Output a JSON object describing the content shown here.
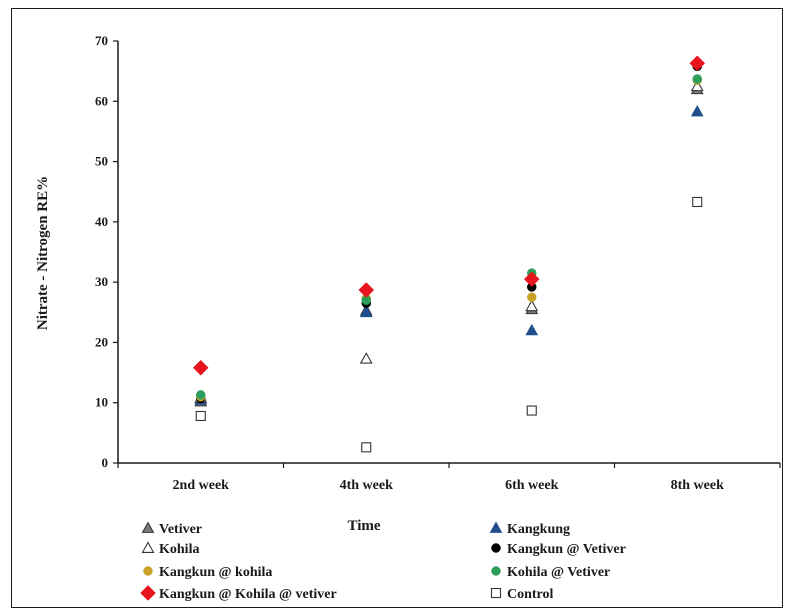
{
  "chart_data": {
    "type": "scatter",
    "title": "",
    "xlabel": "Time",
    "ylabel": "Nitrate - Nitrogen RE%",
    "ylim": [
      0,
      70
    ],
    "yticks": [
      0,
      10,
      20,
      30,
      40,
      50,
      60,
      70
    ],
    "categories": [
      "2nd week",
      "4th  week",
      "6th week",
      "8th week"
    ],
    "grid": false,
    "legend_position": "bottom",
    "series": [
      {
        "name": "Vetiver",
        "marker": "triangle-gray",
        "color": "#7a7a7a",
        "values": [
          10.2,
          25.3,
          25.5,
          62.0
        ]
      },
      {
        "name": "Kangkung",
        "marker": "triangle-blue",
        "color": "#1f4e8c",
        "values": [
          10.5,
          25.0,
          22.0,
          58.3
        ]
      },
      {
        "name": "Kohila",
        "marker": "triangle-open",
        "color": "#333333",
        "values": [
          10.8,
          17.3,
          26.0,
          62.5
        ]
      },
      {
        "name": "Kangkun @ Vetiver",
        "marker": "circle-black",
        "color": "#000000",
        "values": [
          10.7,
          26.5,
          29.2,
          65.8
        ]
      },
      {
        "name": "Kangkun @ kohila",
        "marker": "circle-gold",
        "color": "#c9a227",
        "values": [
          11.0,
          27.3,
          27.5,
          63.5
        ]
      },
      {
        "name": "Kohila @ Vetiver",
        "marker": "circle-green",
        "color": "#2e9e5b",
        "values": [
          11.3,
          27.0,
          31.5,
          63.7
        ]
      },
      {
        "name": "Kangkun @ Kohila @ vetiver",
        "marker": "diamond-red",
        "color": "#e8141e",
        "values": [
          15.8,
          28.7,
          30.5,
          66.3
        ]
      },
      {
        "name": "Control",
        "marker": "square-open",
        "color": "#333333",
        "values": [
          7.8,
          2.6,
          8.7,
          43.3
        ]
      }
    ]
  }
}
